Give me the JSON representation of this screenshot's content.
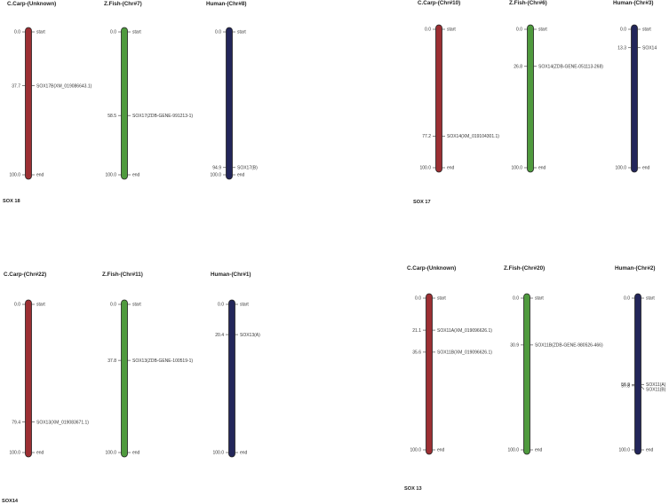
{
  "colors": {
    "C.Carp": "#9c2f33",
    "Z.Fish": "#4f9a3e",
    "Human": "#23265a"
  },
  "panels": [
    {
      "label": "SOX 18",
      "chromosomes": [
        {
          "species": "C.Carp",
          "title": "C.Carp-(Unknown)",
          "markers": [
            {
              "pos": "0.0",
              "value": 0,
              "label": "start"
            },
            {
              "pos": "37.7",
              "value": 37.7,
              "label": "SOX17B(XM_019086643.1)"
            },
            {
              "pos": "100.0",
              "value": 100,
              "label": "end"
            }
          ]
        },
        {
          "species": "Z.Fish",
          "title": "Z.Fish-(Chr#7)",
          "markers": [
            {
              "pos": "0.0",
              "value": 0,
              "label": "start"
            },
            {
              "pos": "58.5",
              "value": 58.5,
              "label": "SOX17(ZDB-GENE-991213-1)"
            },
            {
              "pos": "100.0",
              "value": 100,
              "label": "end"
            }
          ]
        },
        {
          "species": "Human",
          "title": "Human-(Chr#8)",
          "markers": [
            {
              "pos": "0.0",
              "value": 0,
              "label": "start"
            },
            {
              "pos": "94.9",
              "value": 94.9,
              "label": "SOX17(B)"
            },
            {
              "pos": "100.0",
              "value": 100,
              "label": "end"
            }
          ]
        }
      ]
    },
    {
      "label": "SOX 17",
      "chromosomes": [
        {
          "species": "C.Carp",
          "title": "C.Carp-(Chr#10)",
          "markers": [
            {
              "pos": "0.0",
              "value": 0,
              "label": "start"
            },
            {
              "pos": "77.2",
              "value": 77.2,
              "label": "SOX14(XM_019104301.1)"
            },
            {
              "pos": "100.0",
              "value": 100,
              "label": "end"
            }
          ]
        },
        {
          "species": "Z.Fish",
          "title": "Z.Fish-(Chr#6)",
          "markers": [
            {
              "pos": "0.0",
              "value": 0,
              "label": "start"
            },
            {
              "pos": "26.8",
              "value": 26.8,
              "label": "SOX14(ZDB-GENE-051113-268)"
            },
            {
              "pos": "100.0",
              "value": 100,
              "label": "end"
            }
          ]
        },
        {
          "species": "Human",
          "title": "Human-(Chr#3)",
          "markers": [
            {
              "pos": "0.0",
              "value": 0,
              "label": "start"
            },
            {
              "pos": "13.3",
              "value": 13.3,
              "label": "SOX14"
            },
            {
              "pos": "100.0",
              "value": 100,
              "label": "end"
            }
          ]
        }
      ]
    },
    {
      "label": "SOX14",
      "chromosomes": [
        {
          "species": "C.Carp",
          "title": "C.Carp-(Chr#22)",
          "markers": [
            {
              "pos": "0.0",
              "value": 0,
              "label": "start"
            },
            {
              "pos": "79.4",
              "value": 79.4,
              "label": "SOX13(XM_019083671.1)"
            },
            {
              "pos": "100.0",
              "value": 100,
              "label": "end"
            }
          ]
        },
        {
          "species": "Z.Fish",
          "title": "Z.Fish-(Chr#11)",
          "markers": [
            {
              "pos": "0.0",
              "value": 0,
              "label": "start"
            },
            {
              "pos": "37.8",
              "value": 37.8,
              "label": "SOX13(ZDB-GENE-100519-1)"
            },
            {
              "pos": "100.0",
              "value": 100,
              "label": "end"
            }
          ]
        },
        {
          "species": "Human",
          "title": "Human-(Chr#1)",
          "markers": [
            {
              "pos": "0.0",
              "value": 0,
              "label": "start"
            },
            {
              "pos": "20.4",
              "value": 20.4,
              "label": "SOX13(A)"
            },
            {
              "pos": "100.0",
              "value": 100,
              "label": "end"
            }
          ]
        }
      ]
    },
    {
      "label": "SOX 13",
      "chromosomes": [
        {
          "species": "C.Carp",
          "title": "C.Carp-(Unknown)",
          "markers": [
            {
              "pos": "0.0",
              "value": 0,
              "label": "start"
            },
            {
              "pos": "21.1",
              "value": 21.1,
              "label": "SOX11A(XM_019096626.1)"
            },
            {
              "pos": "35.6",
              "value": 35.6,
              "label": "SOX11B(XM_019096626.1)"
            },
            {
              "pos": "100.0",
              "value": 100,
              "label": "end"
            }
          ]
        },
        {
          "species": "Z.Fish",
          "title": "Z.Fish-(Chr#20)",
          "markers": [
            {
              "pos": "0.0",
              "value": 0,
              "label": "start"
            },
            {
              "pos": "30.9",
              "value": 30.9,
              "label": "SOX11B(ZDB-GENE-980526-466)"
            },
            {
              "pos": "100.0",
              "value": 100,
              "label": "end"
            }
          ]
        },
        {
          "species": "Human",
          "title": "Human-(Chr#2)",
          "markers": [
            {
              "pos": "0.0",
              "value": 0,
              "label": "start"
            },
            {
              "pos": "56.9",
              "value": 56.9,
              "label": "SOX11(A)"
            },
            {
              "pos": "57.8",
              "value": 57.8,
              "label": "SOX11(B)"
            },
            {
              "pos": "100.0",
              "value": 100,
              "label": "end"
            }
          ]
        }
      ]
    }
  ]
}
